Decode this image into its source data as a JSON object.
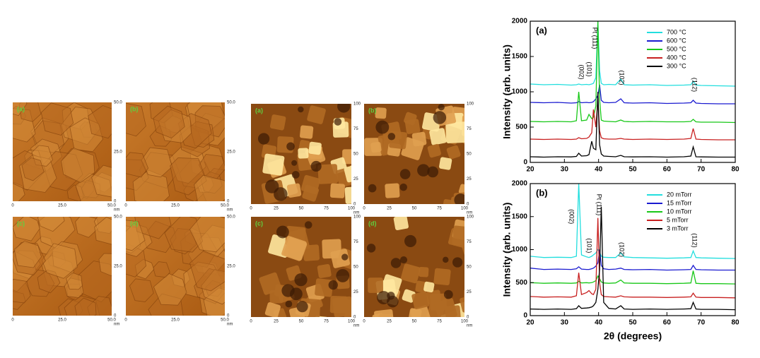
{
  "afm_groups": [
    {
      "labels": [
        "(a)",
        "(b)",
        "(c)",
        "(d)"
      ],
      "ticks": [
        "0",
        "25.0",
        "50.0"
      ],
      "unit": "nm"
    },
    {
      "labels": [
        "(a)",
        "(b)",
        "(c)",
        "(d)"
      ],
      "ticks": [
        "0",
        "25",
        "50",
        "75",
        "100"
      ],
      "unit": "nm"
    }
  ],
  "chart_data": [
    {
      "type": "line",
      "title": "(a)",
      "ylabel": "Intensity (arb. units)",
      "x": [
        20,
        24,
        28,
        32,
        33.5,
        34.2,
        35,
        36.5,
        37.2,
        38,
        38.5,
        39.2,
        39.8,
        40.3,
        40.8,
        41.5,
        43,
        45,
        46.5,
        47.5,
        50,
        55,
        60,
        65,
        67,
        67.7,
        68.5,
        70,
        75,
        80
      ],
      "xlim": [
        20,
        80
      ],
      "xticks": [
        20,
        30,
        40,
        50,
        60,
        70,
        80
      ],
      "ylim": [
        0,
        2000
      ],
      "yticks": [
        0,
        500,
        1000,
        1500,
        2000
      ],
      "legend": "upper right",
      "annotations": [
        "(002)",
        "(101)",
        "Pt (111)",
        "(102)",
        "(112)"
      ],
      "series": [
        {
          "name": "700 °C",
          "color": "#22dede",
          "values": [
            1110,
            1100,
            1105,
            1095,
            1100,
            1110,
            1100,
            1105,
            1100,
            1110,
            1120,
            1200,
            2000,
            1300,
            1120,
            1100,
            1105,
            1100,
            1180,
            1100,
            1095,
            1100,
            1090,
            1095,
            1100,
            1150,
            1095,
            1090,
            1085,
            1080
          ]
        },
        {
          "name": "600 °C",
          "color": "#1a1ad0",
          "values": [
            850,
            845,
            850,
            840,
            845,
            860,
            845,
            850,
            845,
            850,
            860,
            900,
            950,
            1100,
            880,
            850,
            845,
            850,
            900,
            845,
            840,
            845,
            835,
            840,
            845,
            880,
            840,
            835,
            830,
            830
          ]
        },
        {
          "name": "500 °C",
          "color": "#18c818",
          "values": [
            580,
            575,
            580,
            575,
            590,
            1000,
            590,
            600,
            680,
            620,
            640,
            800,
            2000,
            900,
            600,
            585,
            580,
            575,
            600,
            580,
            575,
            580,
            575,
            575,
            580,
            610,
            575,
            570,
            570,
            565
          ]
        },
        {
          "name": "400 °C",
          "color": "#c82020",
          "values": [
            330,
            325,
            330,
            325,
            330,
            350,
            335,
            340,
            360,
            420,
            750,
            500,
            900,
            450,
            350,
            335,
            330,
            330,
            340,
            330,
            325,
            330,
            325,
            330,
            340,
            480,
            330,
            325,
            320,
            320
          ]
        },
        {
          "name": "300 °C",
          "color": "#000000",
          "values": [
            80,
            75,
            80,
            78,
            85,
            130,
            90,
            95,
            110,
            300,
            200,
            180,
            1000,
            250,
            120,
            90,
            85,
            80,
            100,
            80,
            78,
            80,
            75,
            80,
            90,
            220,
            80,
            78,
            75,
            75
          ]
        }
      ]
    },
    {
      "type": "line",
      "title": "(b)",
      "ylabel": "Intensity (arb. units)",
      "xlabel": "2θ (degrees)",
      "x": [
        20,
        24,
        28,
        32,
        33.5,
        34.2,
        35,
        36.5,
        37.2,
        38,
        38.5,
        39.2,
        39.8,
        40.3,
        40.8,
        41.5,
        43,
        45,
        46.5,
        47.5,
        50,
        55,
        60,
        65,
        67,
        67.7,
        68.5,
        70,
        75,
        80
      ],
      "xlim": [
        20,
        80
      ],
      "xticks": [
        20,
        30,
        40,
        50,
        60,
        70,
        80
      ],
      "ylim": [
        0,
        2000
      ],
      "yticks": [
        0,
        500,
        1000,
        1500,
        2000
      ],
      "legend": "upper right",
      "annotations": [
        "(002)",
        "(101)",
        "Pt (111)",
        "(102)",
        "(112)"
      ],
      "series": [
        {
          "name": "20 mTorr",
          "color": "#22dede",
          "values": [
            900,
            880,
            885,
            880,
            900,
            2000,
            920,
            890,
            880,
            900,
            920,
            950,
            1000,
            960,
            900,
            885,
            880,
            880,
            950,
            890,
            880,
            875,
            870,
            875,
            880,
            980,
            880,
            875,
            870,
            865
          ]
        },
        {
          "name": "15 mTorr",
          "color": "#1a1ad0",
          "values": [
            720,
            700,
            705,
            700,
            710,
            740,
            705,
            700,
            700,
            710,
            720,
            750,
            800,
            1000,
            760,
            710,
            700,
            705,
            720,
            700,
            695,
            700,
            690,
            695,
            700,
            760,
            700,
            695,
            690,
            690
          ]
        },
        {
          "name": "10 mTorr",
          "color": "#18c818",
          "values": [
            500,
            490,
            495,
            490,
            495,
            520,
            495,
            500,
            495,
            500,
            510,
            530,
            600,
            560,
            510,
            495,
            490,
            495,
            540,
            495,
            490,
            490,
            485,
            490,
            495,
            680,
            490,
            485,
            485,
            480
          ]
        },
        {
          "name": "5 mTorr",
          "color": "#c82020",
          "values": [
            290,
            280,
            285,
            280,
            300,
            650,
            320,
            350,
            380,
            330,
            320,
            400,
            1480,
            500,
            320,
            290,
            285,
            280,
            300,
            285,
            280,
            280,
            275,
            280,
            285,
            340,
            280,
            275,
            275,
            270
          ]
        },
        {
          "name": "3 mTorr",
          "color": "#000000",
          "values": [
            100,
            95,
            100,
            95,
            105,
            150,
            110,
            115,
            120,
            130,
            150,
            200,
            400,
            700,
            1650,
            200,
            110,
            100,
            150,
            100,
            95,
            100,
            95,
            100,
            105,
            200,
            100,
            95,
            95,
            90
          ]
        }
      ]
    }
  ]
}
